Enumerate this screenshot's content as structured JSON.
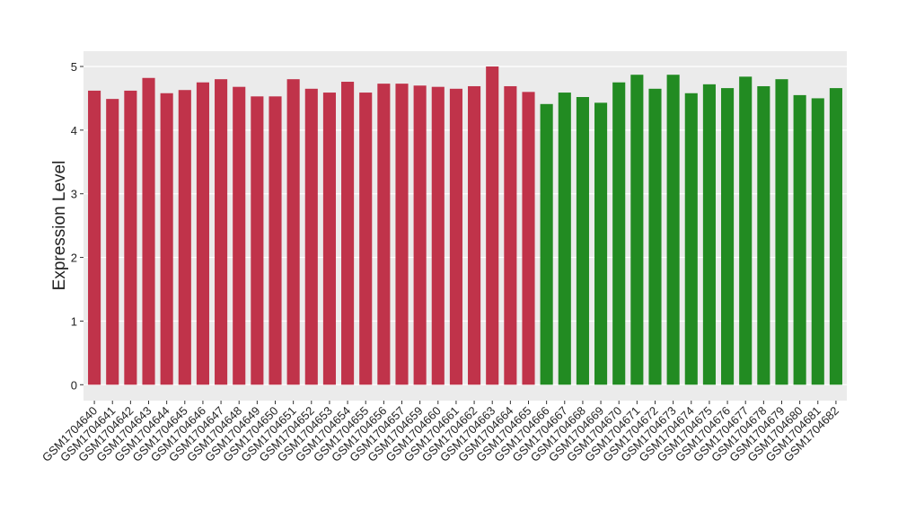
{
  "chart_data": {
    "type": "bar",
    "y_label": "Expression Level",
    "categories": [
      "GSM1704640",
      "GSM1704641",
      "GSM1704642",
      "GSM1704643",
      "GSM1704644",
      "GSM1704645",
      "GSM1704646",
      "GSM1704647",
      "GSM1704648",
      "GSM1704649",
      "GSM1704650",
      "GSM1704651",
      "GSM1704652",
      "GSM1704653",
      "GSM1704654",
      "GSM1704655",
      "GSM1704656",
      "GSM1704657",
      "GSM1704659",
      "GSM1704660",
      "GSM1704661",
      "GSM1704662",
      "GSM1704663",
      "GSM1704664",
      "GSM1704665",
      "GSM1704666",
      "GSM1704667",
      "GSM1704668",
      "GSM1704669",
      "GSM1704670",
      "GSM1704671",
      "GSM1704672",
      "GSM1704673",
      "GSM1704674",
      "GSM1704675",
      "GSM1704676",
      "GSM1704677",
      "GSM1704678",
      "GSM1704679",
      "GSM1704680",
      "GSM1704681",
      "GSM1704682"
    ],
    "values": [
      4.62,
      4.49,
      4.62,
      4.82,
      4.58,
      4.63,
      4.75,
      4.8,
      4.68,
      4.53,
      4.53,
      4.8,
      4.65,
      4.59,
      4.76,
      4.59,
      4.73,
      4.73,
      4.7,
      4.68,
      4.65,
      4.69,
      5.0,
      4.69,
      4.6,
      4.41,
      4.59,
      4.52,
      4.43,
      4.75,
      4.87,
      4.65,
      4.87,
      4.58,
      4.72,
      4.66,
      4.84,
      4.69,
      4.8,
      4.55,
      4.5,
      4.66
    ],
    "colors": [
      "#c0334a",
      "#c0334a",
      "#c0334a",
      "#c0334a",
      "#c0334a",
      "#c0334a",
      "#c0334a",
      "#c0334a",
      "#c0334a",
      "#c0334a",
      "#c0334a",
      "#c0334a",
      "#c0334a",
      "#c0334a",
      "#c0334a",
      "#c0334a",
      "#c0334a",
      "#c0334a",
      "#c0334a",
      "#c0334a",
      "#c0334a",
      "#c0334a",
      "#c0334a",
      "#c0334a",
      "#c0334a",
      "#228b22",
      "#228b22",
      "#228b22",
      "#228b22",
      "#228b22",
      "#228b22",
      "#228b22",
      "#228b22",
      "#228b22",
      "#228b22",
      "#228b22",
      "#228b22",
      "#228b22",
      "#228b22",
      "#228b22",
      "#228b22",
      "#228b22"
    ],
    "ylim": [
      -0.25,
      5.24
    ],
    "yticks": [
      0,
      1,
      2,
      3,
      4,
      5
    ],
    "grid": true
  }
}
